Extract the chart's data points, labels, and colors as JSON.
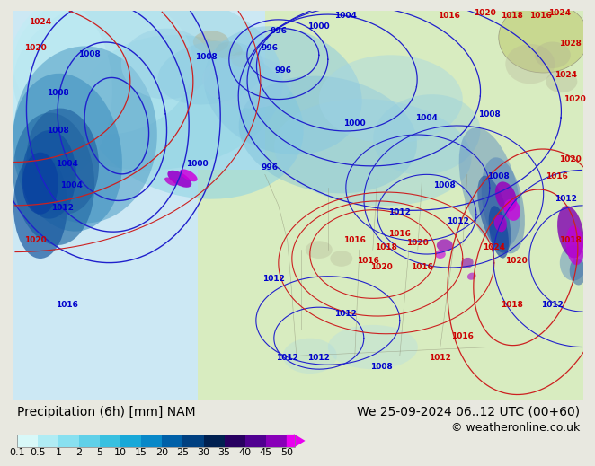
{
  "title_left": "Precipitation (6h) [mm] NAM",
  "title_right": "We 25-09-2024 06..12 UTC (00+60)",
  "copyright": "© weatheronline.co.uk",
  "colorbar_levels": [
    "0.1",
    "0.5",
    "1",
    "2",
    "5",
    "10",
    "15",
    "20",
    "25",
    "30",
    "35",
    "40",
    "45",
    "50"
  ],
  "colorbar_colors": [
    "#d8f8f8",
    "#b0ecf4",
    "#88e0f0",
    "#60d0e8",
    "#38c0e0",
    "#18a8d8",
    "#0888c8",
    "#0060a8",
    "#004080",
    "#002050",
    "#280060",
    "#500090",
    "#8800b8",
    "#c000d8",
    "#e800f0"
  ],
  "bg_color": "#e8e8e0",
  "ocean_color": "#d0eef8",
  "land_color": "#d8ecc0",
  "text_color": "#000000",
  "title_fontsize": 10,
  "copyright_fontsize": 9,
  "tick_fontsize": 8,
  "blue_label_color": "#0000cc",
  "red_label_color": "#cc0000",
  "label_fontsize": 6.5
}
